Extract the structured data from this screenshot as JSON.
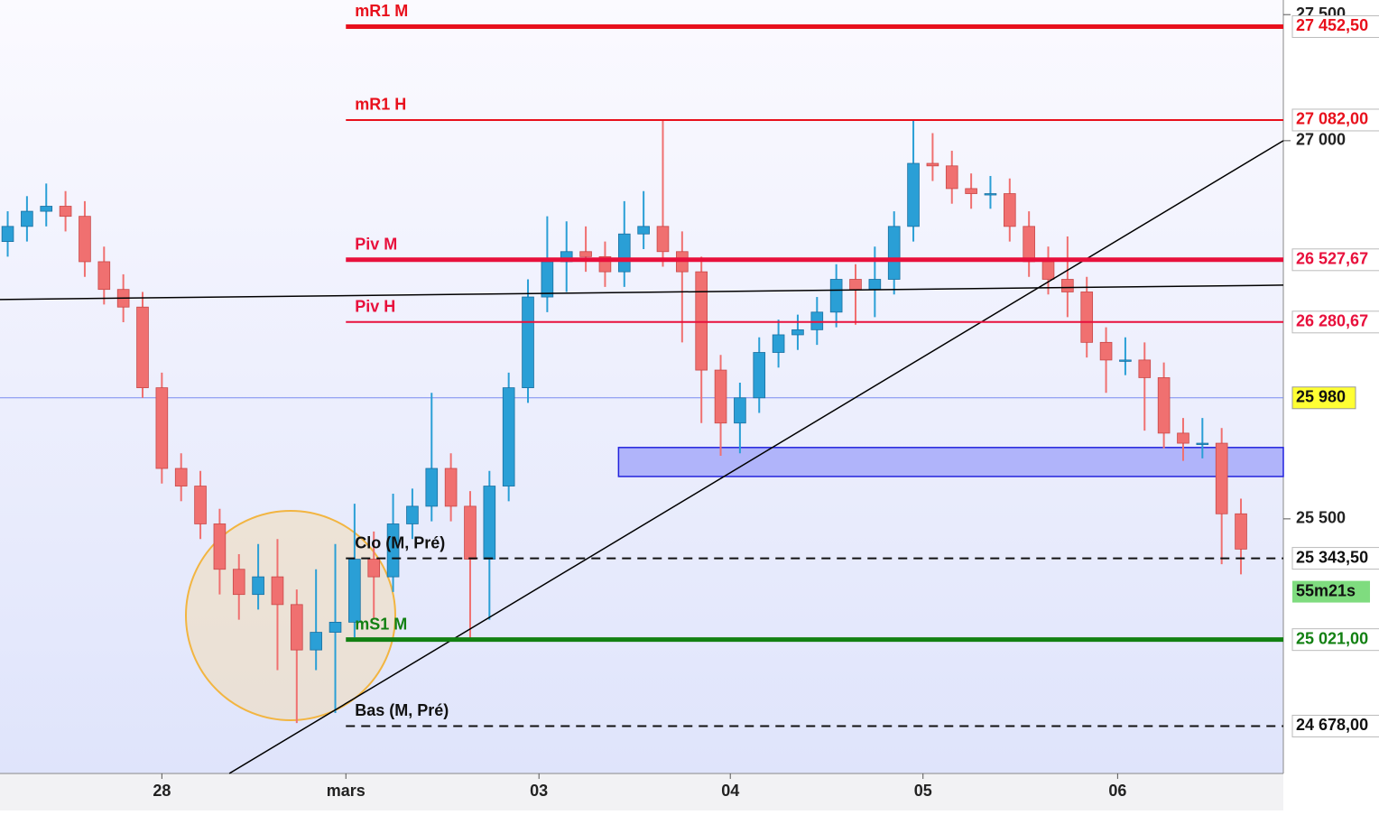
{
  "chart_data": {
    "type": "candlestick",
    "x": [
      -0.8,
      -0.7,
      -0.6,
      -0.5,
      -0.4,
      -0.3,
      -0.2,
      -0.1,
      0,
      0.1,
      0.2,
      0.3,
      0.4,
      0.5,
      0.6,
      0.7,
      0.8,
      0.9,
      1,
      1.1,
      1.2,
      1.3,
      1.4,
      1.5,
      1.6,
      1.7,
      1.8,
      1.9,
      2,
      2.1,
      2.2,
      2.3,
      2.4,
      2.5,
      2.6,
      2.7,
      2.8,
      2.9,
      3,
      3.1,
      3.2,
      3.3,
      3.4,
      3.5,
      3.6,
      3.7,
      3.8,
      3.9,
      4,
      4.1,
      4.2,
      4.3,
      4.4,
      4.5,
      4.6,
      4.7,
      4.8,
      4.9,
      5,
      5.1,
      5.2,
      5.3,
      5.4,
      5.5,
      5.6
    ],
    "open": [
      26600,
      26660,
      26720,
      26740,
      26700,
      26520,
      26410,
      26340,
      26020,
      25700,
      25630,
      25480,
      25300,
      25200,
      25270,
      25160,
      24980,
      25050,
      25090,
      25340,
      25270,
      25480,
      25550,
      25700,
      25550,
      25340,
      25630,
      26020,
      26380,
      26520,
      26560,
      26540,
      26480,
      26630,
      26660,
      26560,
      26480,
      26090,
      25880,
      25980,
      26160,
      26230,
      26250,
      26320,
      26450,
      26410,
      26450,
      26660,
      26910,
      26900,
      26810,
      26790,
      26790,
      26660,
      26520,
      26450,
      26400,
      26200,
      26130,
      26130,
      26060,
      25840,
      25800,
      25800,
      25520
    ],
    "high": [
      26720,
      26780,
      26830,
      26800,
      26760,
      26580,
      26470,
      26400,
      26080,
      25760,
      25690,
      25540,
      25360,
      25400,
      25420,
      25220,
      25300,
      25400,
      25560,
      25450,
      25600,
      25620,
      26000,
      25760,
      25610,
      25690,
      26080,
      26450,
      26700,
      26680,
      26660,
      26600,
      26760,
      26800,
      27080,
      26640,
      26540,
      26150,
      26040,
      26220,
      26290,
      26310,
      26380,
      26510,
      26510,
      26580,
      26720,
      27080,
      27030,
      26960,
      26870,
      26860,
      26850,
      26720,
      26580,
      26620,
      26460,
      26260,
      26220,
      26200,
      26120,
      25900,
      25900,
      25860,
      25580
    ],
    "low": [
      26540,
      26600,
      26660,
      26640,
      26460,
      26350,
      26280,
      25980,
      25640,
      25570,
      25420,
      25200,
      25100,
      25140,
      24900,
      24690,
      24900,
      24730,
      25030,
      25100,
      25210,
      25420,
      25490,
      25490,
      25020,
      25100,
      25570,
      25960,
      26320,
      26400,
      26480,
      26420,
      26420,
      26570,
      26500,
      26200,
      25880,
      25750,
      25760,
      25920,
      26100,
      26170,
      26190,
      26260,
      26270,
      26300,
      26390,
      26600,
      26840,
      26750,
      26730,
      26730,
      26600,
      26460,
      26390,
      26300,
      26140,
      26000,
      26070,
      25850,
      25780,
      25730,
      25740,
      25320,
      25280
    ],
    "close": [
      26660,
      26720,
      26740,
      26700,
      26520,
      26410,
      26340,
      26020,
      25700,
      25630,
      25480,
      25300,
      25200,
      25270,
      25160,
      24980,
      25050,
      25090,
      25340,
      25270,
      25480,
      25550,
      25700,
      25550,
      25340,
      25630,
      26020,
      26380,
      26520,
      26560,
      26540,
      26480,
      26630,
      26660,
      26560,
      26480,
      26090,
      25880,
      25980,
      26160,
      26230,
      26250,
      26320,
      26450,
      26410,
      26450,
      26660,
      26910,
      26900,
      26810,
      26790,
      26790,
      26660,
      26520,
      26450,
      26400,
      26200,
      26130,
      26130,
      26060,
      25840,
      25800,
      25800,
      25520,
      25380
    ],
    "colors": {
      "up": "#2a9fd6",
      "down": "#f07070"
    },
    "xlim": [
      -0.84,
      5.82
    ],
    "xticks": [
      {
        "value": 0,
        "label": "28"
      },
      {
        "value": 0.955,
        "label": "mars"
      },
      {
        "value": 1.957,
        "label": "03"
      },
      {
        "value": 2.95,
        "label": "04"
      },
      {
        "value": 3.95,
        "label": "05"
      },
      {
        "value": 4.96,
        "label": "06"
      }
    ],
    "ylim": [
      24490,
      27558
    ],
    "yticks": [
      {
        "value": 27500,
        "label": "27 500"
      },
      {
        "value": 27000,
        "label": "27 000"
      },
      {
        "value": 25500,
        "label": "25 500"
      }
    ],
    "levels": [
      {
        "name": "mR1 M",
        "value": 27452.5,
        "label": "27 452,50",
        "color": "#e8101c",
        "width": 5,
        "dash": false
      },
      {
        "name": "mR1 H",
        "value": 27082,
        "label": "27 082,00",
        "color": "#e8101c",
        "width": 2,
        "dash": false
      },
      {
        "name": "Piv M",
        "value": 26527.67,
        "label": "26 527,67",
        "color": "#e8103c",
        "width": 5,
        "dash": false
      },
      {
        "name": "Piv H",
        "value": 26280.67,
        "label": "26 280,67",
        "color": "#e8103c",
        "width": 2,
        "dash": false
      },
      {
        "name": "Clo (M, Pré)",
        "value": 25343.5,
        "label": "25 343,50",
        "color": "#111111",
        "width": 2,
        "dash": true
      },
      {
        "name": "mS1 M",
        "value": 25021,
        "label": "25 021,00",
        "color": "#128012",
        "width": 5,
        "dash": false
      },
      {
        "name": "Bas (M, Pré)",
        "value": 24678,
        "label": "24 678,00",
        "color": "#111111",
        "width": 2,
        "dash": true
      }
    ],
    "marker": {
      "value": 25980,
      "label": "25 980",
      "color": "#7a8cf0"
    },
    "zone": {
      "x": [
        2.37,
        5.82
      ],
      "y": [
        25668,
        25783
      ],
      "color": "#b0b4fa"
    },
    "trendlines": [
      {
        "x": [
          -0.84,
          5.82
        ],
        "y": [
          26370,
          26427
        ]
      },
      {
        "x": [
          0.35,
          5.82
        ],
        "y": [
          24490,
          27000
        ]
      }
    ],
    "countdown": "55m21s"
  }
}
